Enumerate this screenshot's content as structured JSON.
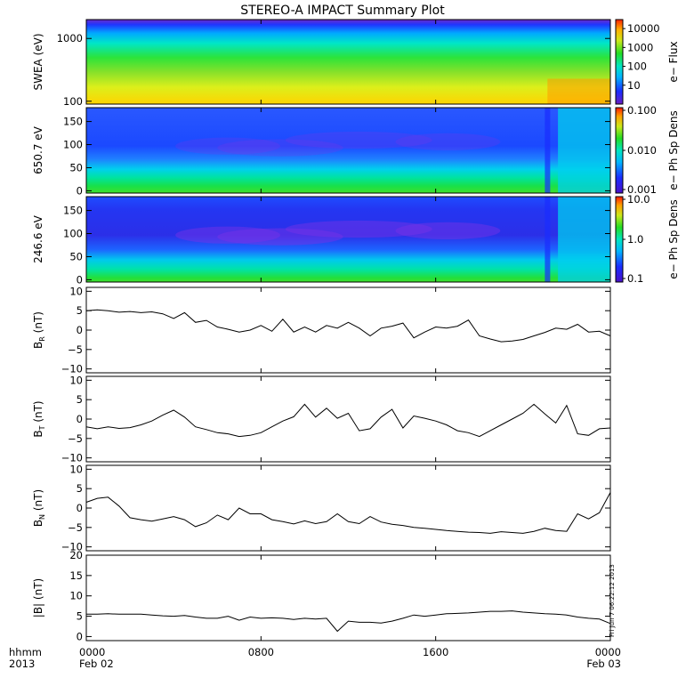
{
  "chart_data": {
    "title": "STEREO-A IMPACT Summary Plot",
    "time_axis": {
      "corner_labels": [
        "hhmm",
        "2013"
      ],
      "ticks": [
        {
          "t": 0,
          "time": "0000",
          "date": "Feb 02"
        },
        {
          "t": 8,
          "time": "0800",
          "date": ""
        },
        {
          "t": 16,
          "time": "1600",
          "date": ""
        },
        {
          "t": 24,
          "time": "0000",
          "date": "Feb 03"
        }
      ],
      "range_hours": [
        0,
        24
      ]
    },
    "panels": [
      {
        "id": "swea",
        "type": "heatmap",
        "ylabel": "SWEA (eV)",
        "yscale": "log",
        "ylim": [
          90,
          2000
        ],
        "yticks": [
          "1000",
          "100"
        ],
        "ytick_values": [
          1000,
          100
        ],
        "colorbar": {
          "label": "e− Flux",
          "scale": "log",
          "ticks": [
            "10000",
            "1000",
            "100",
            "10"
          ],
          "range": [
            1,
            30000
          ]
        }
      },
      {
        "id": "pad-650",
        "type": "heatmap",
        "ylabel": "650.7 eV",
        "ylim": [
          -5,
          180
        ],
        "yticks": [
          "150",
          "100",
          "50",
          "0"
        ],
        "ytick_values": [
          150,
          100,
          50,
          0
        ],
        "colorbar": {
          "label": "e− Ph Sp Dens",
          "scale": "log",
          "ticks": [
            "0.100",
            "0.010",
            "0.001"
          ],
          "range": [
            0.001,
            0.1
          ]
        }
      },
      {
        "id": "pad-246",
        "type": "heatmap",
        "ylabel": "246.6 eV",
        "ylim": [
          -5,
          180
        ],
        "yticks": [
          "150",
          "100",
          "50",
          "0"
        ],
        "ytick_values": [
          150,
          100,
          50,
          0
        ],
        "colorbar": {
          "label": "e− Ph Sp Dens",
          "scale": "log",
          "ticks": [
            "10.0",
            "1.0",
            "0.1"
          ],
          "range": [
            0.1,
            10
          ]
        }
      },
      {
        "id": "br",
        "type": "line",
        "ylabel_main": "B",
        "ylabel_sub": "R",
        "ylabel_unit": "(nT)",
        "ylim": [
          -11,
          11
        ],
        "yticks": [
          "10",
          "5",
          "0",
          "−5",
          "−10"
        ],
        "ytick_values": [
          10,
          5,
          0,
          -5,
          -10
        ],
        "x": [
          0,
          0.5,
          1,
          1.5,
          2,
          2.5,
          3,
          3.5,
          4,
          4.5,
          5,
          5.5,
          6,
          6.5,
          7,
          7.5,
          8,
          8.5,
          9,
          9.5,
          10,
          10.5,
          11,
          11.5,
          12,
          12.5,
          13,
          13.5,
          14,
          14.5,
          15,
          15.5,
          16,
          16.5,
          17,
          17.5,
          18,
          18.5,
          19,
          19.5,
          20,
          20.5,
          21,
          21.5,
          22,
          22.5,
          23,
          23.5,
          24
        ],
        "y": [
          5,
          5.2,
          5,
          4.6,
          4.8,
          4.5,
          4.7,
          4.2,
          3,
          4.5,
          2,
          2.5,
          0.8,
          0.2,
          -0.5,
          0,
          1.2,
          -0.3,
          2.8,
          -0.5,
          0.8,
          -0.5,
          1.2,
          0.5,
          2,
          0.5,
          -1.5,
          0.5,
          1,
          1.8,
          -2,
          -0.5,
          0.8,
          0.5,
          1,
          2.6,
          -1.5,
          -2.3,
          -3,
          -2.8,
          -2.4,
          -1.5,
          -0.6,
          0.5,
          0.2,
          1.5,
          -0.5,
          -0.3,
          -1.5
        ]
      },
      {
        "id": "bt",
        "type": "line",
        "ylabel_main": "B",
        "ylabel_sub": "T",
        "ylabel_unit": "(nT)",
        "ylim": [
          -11,
          11
        ],
        "yticks": [
          "10",
          "5",
          "0",
          "−5",
          "−10"
        ],
        "ytick_values": [
          10,
          5,
          0,
          -5,
          -10
        ],
        "x": [
          0,
          0.5,
          1,
          1.5,
          2,
          2.5,
          3,
          3.5,
          4,
          4.5,
          5,
          5.5,
          6,
          6.5,
          7,
          7.5,
          8,
          8.5,
          9,
          9.5,
          10,
          10.5,
          11,
          11.5,
          12,
          12.5,
          13,
          13.5,
          14,
          14.5,
          15,
          15.5,
          16,
          16.5,
          17,
          17.5,
          18,
          18.5,
          19,
          19.5,
          20,
          20.5,
          21,
          21.5,
          22,
          22.5,
          23,
          23.5,
          24
        ],
        "y": [
          -2,
          -2.5,
          -2,
          -2.4,
          -2.2,
          -1.5,
          -0.5,
          1,
          2.3,
          0.5,
          -2,
          -2.7,
          -3.5,
          -3.8,
          -4.5,
          -4.2,
          -3.5,
          -2,
          -0.5,
          0.6,
          3.8,
          0.5,
          2.8,
          0.2,
          1.5,
          -3,
          -2.5,
          0.5,
          2.5,
          -2.3,
          0.8,
          0.2,
          -0.5,
          -1.5,
          -3,
          -3.5,
          -4.5,
          -3,
          -1.5,
          0,
          1.5,
          3.8,
          1.3,
          -1,
          3.5,
          -3.8,
          -4.2,
          -2.5,
          -2.3
        ]
      },
      {
        "id": "bn",
        "type": "line",
        "ylabel_main": "B",
        "ylabel_sub": "N",
        "ylabel_unit": "(nT)",
        "ylim": [
          -11,
          11
        ],
        "yticks": [
          "10",
          "5",
          "0",
          "−5",
          "−10"
        ],
        "ytick_values": [
          10,
          5,
          0,
          -5,
          -10
        ],
        "x": [
          0,
          0.5,
          1,
          1.5,
          2,
          2.5,
          3,
          3.5,
          4,
          4.5,
          5,
          5.5,
          6,
          6.5,
          7,
          7.5,
          8,
          8.5,
          9,
          9.5,
          10,
          10.5,
          11,
          11.5,
          12,
          12.5,
          13,
          13.5,
          14,
          14.5,
          15,
          15.5,
          16,
          16.5,
          17,
          17.5,
          18,
          18.5,
          19,
          19.5,
          20,
          20.5,
          21,
          21.5,
          22,
          22.5,
          23,
          23.5,
          24
        ],
        "y": [
          1.5,
          2.5,
          2.8,
          0.5,
          -2.5,
          -3,
          -3.4,
          -2.8,
          -2.2,
          -3,
          -4.8,
          -3.8,
          -1.8,
          -3,
          0,
          -1.5,
          -1.5,
          -3,
          -3.5,
          -4.1,
          -3.3,
          -4,
          -3.5,
          -1.5,
          -3.5,
          -4,
          -2.2,
          -3.6,
          -4.2,
          -4.5,
          -5,
          -5.2,
          -5.5,
          -5.8,
          -6,
          -6.2,
          -6.3,
          -6.5,
          -6.1,
          -6.3,
          -6.5,
          -6,
          -5.2,
          -5.8,
          -6,
          -1.5,
          -2.8,
          -1.2,
          4
        ]
      },
      {
        "id": "bmag",
        "type": "line",
        "ylabel_main": "|B| (nT)",
        "ylim": [
          -1,
          20
        ],
        "yticks": [
          "20",
          "15",
          "10",
          "5",
          "0"
        ],
        "ytick_values": [
          20,
          15,
          10,
          5,
          0
        ],
        "x": [
          0,
          0.5,
          1,
          1.5,
          2,
          2.5,
          3,
          3.5,
          4,
          4.5,
          5,
          5.5,
          6,
          6.5,
          7,
          7.5,
          8,
          8.5,
          9,
          9.5,
          10,
          10.5,
          11,
          11.5,
          12,
          12.5,
          13,
          13.5,
          14,
          14.5,
          15,
          15.5,
          16,
          16.5,
          17,
          17.5,
          18,
          18.5,
          19,
          19.5,
          20,
          20.5,
          21,
          21.5,
          22,
          22.5,
          23,
          23.5,
          24
        ],
        "y": [
          5.5,
          5.5,
          5.6,
          5.5,
          5.5,
          5.5,
          5.3,
          5.1,
          5,
          5.2,
          4.8,
          4.5,
          4.5,
          5,
          4,
          4.8,
          4.5,
          4.6,
          4.5,
          4.2,
          4.5,
          4.3,
          4.5,
          1.3,
          3.8,
          3.5,
          3.5,
          3.3,
          3.8,
          4.5,
          5.3,
          5,
          5.3,
          5.6,
          5.7,
          5.8,
          6,
          6.2,
          6.2,
          6.3,
          6,
          5.8,
          5.6,
          5.5,
          5.3,
          4.8,
          4.5,
          4.3,
          3.2
        ]
      }
    ]
  },
  "timestamp": "Fri Jun  7 06:22:12 2013"
}
